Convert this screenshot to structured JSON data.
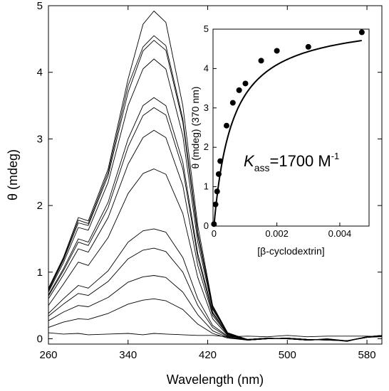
{
  "chart_data": [
    {
      "type": "line",
      "xlabel": "Wavelength (nm)",
      "ylabel": "θ (mdeg)",
      "xlim": [
        260,
        595
      ],
      "ylim": [
        -0.08,
        5.0
      ],
      "x_ticks": [
        260,
        340,
        420,
        500,
        580
      ],
      "y_ticks": [
        0,
        1,
        2,
        3,
        4,
        5
      ],
      "grid": false,
      "series": [
        {
          "x": [
            260,
            275,
            290,
            300,
            320,
            340,
            355,
            366,
            378,
            395,
            410,
            425,
            440,
            460,
            480,
            500,
            520,
            540,
            560,
            580,
            595
          ],
          "y": [
            0.76,
            1.22,
            1.82,
            1.77,
            2.55,
            3.9,
            4.72,
            4.92,
            4.75,
            3.5,
            1.7,
            0.5,
            0.09,
            -0.02,
            0.0,
            0.01,
            -0.02,
            -0.01,
            -0.04,
            0.03,
            0.05
          ]
        },
        {
          "x": [
            260,
            275,
            290,
            300,
            320,
            340,
            355,
            366,
            378,
            395,
            410,
            425,
            440,
            460,
            480,
            500,
            520,
            540,
            560,
            580,
            595
          ],
          "y": [
            0.74,
            1.2,
            1.78,
            1.73,
            2.5,
            3.8,
            4.38,
            4.55,
            4.4,
            3.3,
            1.6,
            0.48,
            0.09,
            -0.01,
            0.01,
            0.0,
            -0.02,
            0.0,
            -0.03,
            0.02,
            0.04
          ]
        },
        {
          "x": [
            260,
            275,
            290,
            300,
            320,
            340,
            355,
            366,
            378,
            395,
            410,
            425,
            440,
            460,
            480,
            500,
            520,
            540,
            560,
            580,
            595
          ],
          "y": [
            0.72,
            1.18,
            1.74,
            1.7,
            2.45,
            3.7,
            4.32,
            4.48,
            4.33,
            3.25,
            1.55,
            0.46,
            0.08,
            -0.02,
            0.0,
            0.01,
            -0.01,
            -0.02,
            -0.03,
            0.03,
            0.05
          ]
        },
        {
          "x": [
            260,
            275,
            290,
            300,
            320,
            340,
            355,
            366,
            378,
            395,
            410,
            425,
            440,
            460,
            480,
            500,
            520,
            540,
            560,
            580,
            595
          ],
          "y": [
            0.7,
            1.14,
            1.67,
            1.63,
            2.35,
            3.5,
            4.05,
            4.2,
            4.05,
            3.05,
            1.45,
            0.44,
            0.08,
            -0.01,
            0.01,
            0.0,
            -0.02,
            -0.01,
            -0.03,
            0.02,
            0.04
          ]
        },
        {
          "x": [
            260,
            275,
            290,
            300,
            320,
            340,
            355,
            366,
            378,
            395,
            410,
            425,
            440,
            460,
            480,
            500,
            520,
            540,
            560,
            580,
            595
          ],
          "y": [
            0.66,
            1.05,
            1.5,
            1.45,
            2.05,
            3.0,
            3.5,
            3.62,
            3.5,
            2.65,
            1.28,
            0.4,
            0.07,
            -0.02,
            0.0,
            0.01,
            -0.01,
            -0.01,
            -0.03,
            0.02,
            0.04
          ]
        },
        {
          "x": [
            260,
            275,
            290,
            300,
            320,
            340,
            355,
            366,
            378,
            395,
            410,
            425,
            440,
            460,
            480,
            500,
            520,
            540,
            560,
            580,
            595
          ],
          "y": [
            0.64,
            1.02,
            1.45,
            1.4,
            1.97,
            2.88,
            3.35,
            3.47,
            3.36,
            2.55,
            1.22,
            0.38,
            0.07,
            -0.01,
            0.01,
            0.0,
            -0.02,
            -0.01,
            -0.03,
            0.03,
            0.05
          ]
        },
        {
          "x": [
            260,
            275,
            290,
            300,
            320,
            340,
            355,
            366,
            378,
            395,
            410,
            425,
            440,
            460,
            480,
            500,
            520,
            540,
            560,
            580,
            595
          ],
          "y": [
            0.6,
            0.96,
            1.35,
            1.3,
            1.82,
            2.62,
            3.02,
            3.13,
            3.02,
            2.3,
            1.1,
            0.35,
            0.06,
            -0.02,
            0.0,
            0.01,
            -0.01,
            -0.02,
            -0.03,
            0.02,
            0.04
          ]
        },
        {
          "x": [
            260,
            275,
            290,
            300,
            320,
            340,
            355,
            366,
            378,
            395,
            410,
            425,
            440,
            460,
            480,
            500,
            520,
            540,
            560,
            580,
            595
          ],
          "y": [
            0.5,
            0.82,
            1.15,
            1.1,
            1.52,
            2.18,
            2.48,
            2.55,
            2.47,
            1.88,
            0.92,
            0.3,
            0.05,
            -0.01,
            0.01,
            0.0,
            -0.02,
            -0.01,
            -0.03,
            0.02,
            0.04
          ]
        },
        {
          "x": [
            260,
            275,
            290,
            300,
            320,
            340,
            355,
            366,
            378,
            395,
            410,
            425,
            440,
            460,
            480,
            500,
            520,
            540,
            560,
            580,
            595
          ],
          "y": [
            0.38,
            0.6,
            0.8,
            0.76,
            1.02,
            1.45,
            1.62,
            1.65,
            1.6,
            1.22,
            0.6,
            0.2,
            0.04,
            -0.02,
            0.0,
            0.01,
            -0.01,
            -0.01,
            -0.03,
            0.02,
            0.04
          ]
        },
        {
          "x": [
            260,
            275,
            290,
            300,
            320,
            340,
            355,
            366,
            378,
            395,
            410,
            425,
            440,
            460,
            480,
            500,
            520,
            540,
            560,
            580,
            595
          ],
          "y": [
            0.34,
            0.52,
            0.68,
            0.65,
            0.86,
            1.2,
            1.33,
            1.36,
            1.31,
            1.0,
            0.5,
            0.17,
            0.03,
            -0.01,
            0.01,
            0.0,
            -0.02,
            -0.01,
            -0.03,
            0.03,
            0.05
          ]
        },
        {
          "x": [
            260,
            275,
            290,
            300,
            320,
            340,
            355,
            366,
            378,
            395,
            410,
            425,
            440,
            460,
            480,
            500,
            520,
            540,
            560,
            580,
            595
          ],
          "y": [
            0.27,
            0.4,
            0.5,
            0.48,
            0.62,
            0.85,
            0.93,
            0.95,
            0.92,
            0.7,
            0.36,
            0.12,
            0.02,
            -0.02,
            0.0,
            0.01,
            -0.01,
            -0.02,
            -0.03,
            0.02,
            0.04
          ]
        },
        {
          "x": [
            260,
            275,
            290,
            300,
            320,
            340,
            355,
            366,
            378,
            395,
            410,
            425,
            440,
            460,
            480,
            500,
            520,
            540,
            560,
            580,
            595
          ],
          "y": [
            0.17,
            0.25,
            0.3,
            0.29,
            0.38,
            0.52,
            0.58,
            0.6,
            0.57,
            0.44,
            0.22,
            0.08,
            0.01,
            -0.02,
            0.0,
            0.0,
            -0.02,
            -0.01,
            -0.03,
            0.02,
            0.03
          ]
        },
        {
          "x": [
            260,
            275,
            290,
            300,
            320,
            340,
            355,
            366,
            378,
            395,
            410,
            425,
            440,
            460,
            480,
            500,
            520,
            540,
            560,
            580,
            595
          ],
          "y": [
            0.09,
            0.07,
            0.08,
            0.06,
            0.07,
            0.08,
            0.06,
            0.08,
            0.07,
            0.06,
            0.05,
            0.05,
            0.03,
            0.04,
            0.03,
            0.05,
            0.03,
            0.04,
            0.04,
            0.04,
            0.03
          ]
        }
      ]
    },
    {
      "type": "scatter",
      "xlabel": "[β-cyclodextrin]",
      "ylabel": "θ (mdeg) (370 nm)",
      "xlim": [
        -3e-05,
        0.00493
      ],
      "ylim": [
        0,
        5
      ],
      "x_ticks": [
        0,
        0.002,
        0.004
      ],
      "x_tick_labels": [
        "0",
        "0.002",
        "0.004"
      ],
      "y_ticks": [
        0,
        1,
        2,
        3,
        4,
        5
      ],
      "grid": false,
      "annotation": {
        "prefix": "K",
        "subscript": "ass",
        "text": "=1700 M",
        "superscript": "-1"
      },
      "points": {
        "x": [
          0,
          5e-05,
          0.0001,
          0.00015,
          0.0002,
          0.0004,
          0.0006,
          0.0008,
          0.001,
          0.0015,
          0.002,
          0.003,
          0.0047
        ],
        "y": [
          0.05,
          0.55,
          0.88,
          1.32,
          1.65,
          2.55,
          3.13,
          3.45,
          3.62,
          4.2,
          4.45,
          4.55,
          4.92
        ]
      },
      "fit": {
        "K": 1700,
        "theta_max": 5.3
      }
    }
  ]
}
